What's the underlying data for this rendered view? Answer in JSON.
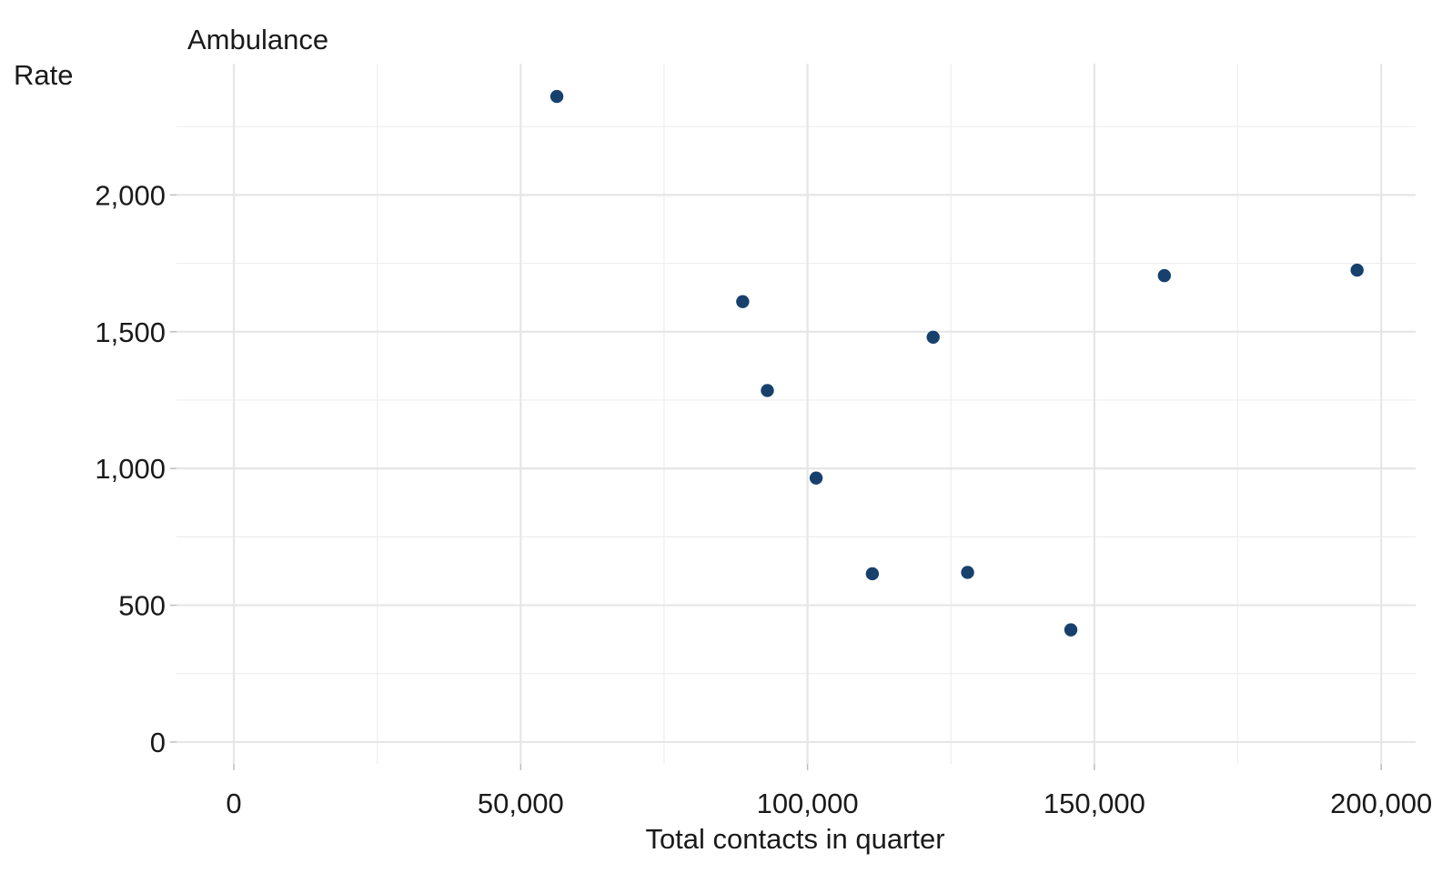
{
  "chart_data": {
    "type": "scatter",
    "title": "Ambulance",
    "xlabel": "Total contacts in quarter",
    "ylabel": "Rate",
    "xlim": [
      -10000,
      206000
    ],
    "ylim": [
      -80,
      2480
    ],
    "x_ticks": [
      0,
      50000,
      100000,
      150000,
      200000
    ],
    "x_tick_labels": [
      "0",
      "50,000",
      "100,000",
      "150,000",
      "200,000"
    ],
    "x_minor_ticks": [
      25000,
      75000,
      125000,
      175000
    ],
    "y_ticks": [
      0,
      500,
      1000,
      1500,
      2000
    ],
    "y_tick_labels": [
      "0",
      "500",
      "1,000",
      "1,500",
      "2,000"
    ],
    "y_minor_ticks": [
      250,
      750,
      1250,
      1750,
      2250
    ],
    "grid": true,
    "point_color": "#17406d",
    "series": [
      {
        "points": [
          {
            "x": 56300,
            "y": 2360
          },
          {
            "x": 88700,
            "y": 1610
          },
          {
            "x": 93000,
            "y": 1285
          },
          {
            "x": 101500,
            "y": 965
          },
          {
            "x": 111300,
            "y": 615
          },
          {
            "x": 121900,
            "y": 1480
          },
          {
            "x": 127900,
            "y": 620
          },
          {
            "x": 145900,
            "y": 410
          },
          {
            "x": 162200,
            "y": 1705
          },
          {
            "x": 195800,
            "y": 1725
          }
        ]
      }
    ]
  }
}
